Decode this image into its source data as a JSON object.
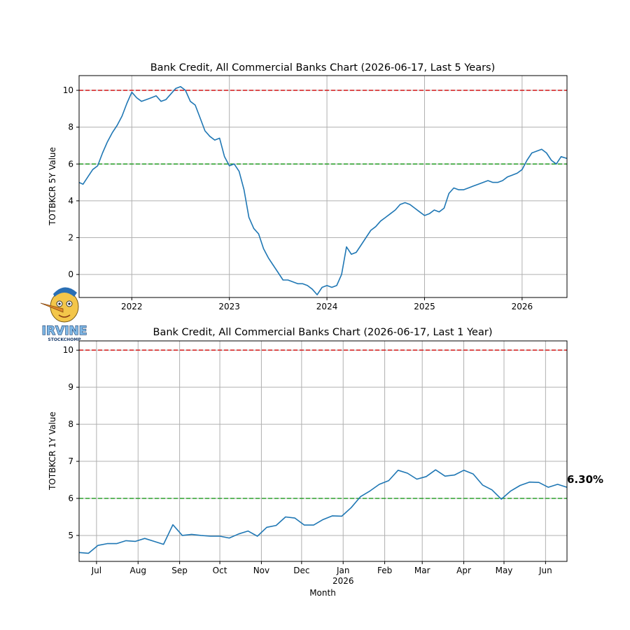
{
  "chart_data": [
    {
      "type": "line",
      "title": "Bank Credit, All Commercial Banks Chart (2026-06-17, Last 5 Years)",
      "xlabel": "",
      "ylabel": "TOTBKCR 5Y Value",
      "x_unit": "year",
      "xlim": [
        2021.46,
        2026.46
      ],
      "ylim": [
        -1.25,
        10.8
      ],
      "xticks": [
        2022,
        2023,
        2024,
        2025,
        2026
      ],
      "xtick_labels": [
        "2022",
        "2023",
        "2024",
        "2025",
        "2026"
      ],
      "yticks": [
        0,
        2,
        4,
        6,
        8,
        10
      ],
      "ytick_labels": [
        "0",
        "2",
        "4",
        "6",
        "8",
        "10"
      ],
      "grid": true,
      "reference_lines": [
        {
          "y": 10,
          "color": "#d62728",
          "style": "dashed"
        },
        {
          "y": 6,
          "color": "#2ca02c",
          "style": "dashed"
        }
      ],
      "series": [
        {
          "color": "#1f77b4",
          "x": [
            2021.46,
            2021.5,
            2021.55,
            2021.6,
            2021.65,
            2021.7,
            2021.75,
            2021.8,
            2021.85,
            2021.9,
            2021.95,
            2022.0,
            2022.05,
            2022.1,
            2022.15,
            2022.2,
            2022.25,
            2022.3,
            2022.35,
            2022.4,
            2022.45,
            2022.5,
            2022.55,
            2022.6,
            2022.65,
            2022.7,
            2022.75,
            2022.8,
            2022.85,
            2022.9,
            2022.95,
            2023.0,
            2023.05,
            2023.1,
            2023.15,
            2023.2,
            2023.25,
            2023.3,
            2023.35,
            2023.4,
            2023.45,
            2023.5,
            2023.55,
            2023.6,
            2023.65,
            2023.7,
            2023.75,
            2023.8,
            2023.85,
            2023.9,
            2023.95,
            2024.0,
            2024.05,
            2024.1,
            2024.15,
            2024.2,
            2024.25,
            2024.3,
            2024.35,
            2024.4,
            2024.45,
            2024.5,
            2024.55,
            2024.6,
            2024.65,
            2024.7,
            2024.75,
            2024.8,
            2024.85,
            2024.9,
            2024.95,
            2025.0,
            2025.05,
            2025.1,
            2025.15,
            2025.2,
            2025.25,
            2025.3,
            2025.35,
            2025.4,
            2025.45,
            2025.5,
            2025.55,
            2025.6,
            2025.65,
            2025.7,
            2025.75,
            2025.8,
            2025.85,
            2025.9,
            2025.95,
            2026.0,
            2026.05,
            2026.1,
            2026.15,
            2026.2,
            2026.25,
            2026.3,
            2026.35,
            2026.4,
            2026.46
          ],
          "values": [
            5.0,
            4.9,
            5.3,
            5.7,
            5.9,
            6.6,
            7.2,
            7.7,
            8.1,
            8.6,
            9.3,
            9.9,
            9.6,
            9.4,
            9.5,
            9.6,
            9.7,
            9.4,
            9.5,
            9.8,
            10.1,
            10.2,
            10.0,
            9.4,
            9.2,
            8.5,
            7.8,
            7.5,
            7.3,
            7.4,
            6.4,
            5.9,
            6.0,
            5.6,
            4.6,
            3.1,
            2.5,
            2.2,
            1.4,
            0.9,
            0.5,
            0.1,
            -0.3,
            -0.3,
            -0.4,
            -0.5,
            -0.5,
            -0.6,
            -0.8,
            -1.1,
            -0.7,
            -0.6,
            -0.7,
            -0.6,
            0.0,
            1.5,
            1.1,
            1.2,
            1.6,
            2.0,
            2.4,
            2.6,
            2.9,
            3.1,
            3.3,
            3.5,
            3.8,
            3.9,
            3.8,
            3.6,
            3.4,
            3.2,
            3.3,
            3.5,
            3.4,
            3.6,
            4.4,
            4.7,
            4.6,
            4.6,
            4.7,
            4.8,
            4.9,
            5.0,
            5.1,
            5.0,
            5.0,
            5.1,
            5.3,
            5.4,
            5.5,
            5.7,
            6.2,
            6.6,
            6.7,
            6.8,
            6.6,
            6.2,
            6.0,
            6.4,
            6.3
          ]
        }
      ]
    },
    {
      "type": "line",
      "title": "Bank Credit, All Commercial Banks Chart (2026-06-17, Last 1 Year)",
      "xlabel": "Month",
      "ylabel": "TOTBKCR 1Y Value",
      "x_unit": "days since 2025-06-01",
      "xlim": [
        17,
        381
      ],
      "ylim": [
        4.3,
        10.25
      ],
      "xticks": [
        30,
        61,
        92,
        122,
        153,
        183,
        214,
        245,
        273,
        304,
        334,
        365
      ],
      "xtick_labels": [
        "Jul",
        "Aug",
        "Sep",
        "Oct",
        "Nov",
        "Dec",
        "Jan",
        "Feb",
        "Mar",
        "Apr",
        "May",
        "Jun"
      ],
      "xtick_sublabel": {
        "Jan": "2026"
      },
      "yticks": [
        5,
        6,
        7,
        8,
        9,
        10
      ],
      "ytick_labels": [
        "5",
        "6",
        "7",
        "8",
        "9",
        "10"
      ],
      "grid": true,
      "reference_lines": [
        {
          "y": 10,
          "color": "#d62728",
          "style": "dashed"
        },
        {
          "y": 6,
          "color": "#2ca02c",
          "style": "dashed"
        }
      ],
      "last_value_label": "6.30%",
      "series": [
        {
          "color": "#1f77b4",
          "x": [
            17,
            24,
            31,
            38,
            45,
            52,
            59,
            66,
            73,
            80,
            87,
            94,
            101,
            108,
            115,
            122,
            129,
            136,
            143,
            150,
            157,
            164,
            171,
            178,
            185,
            192,
            199,
            206,
            213,
            220,
            227,
            234,
            241,
            248,
            255,
            262,
            269,
            276,
            283,
            290,
            297,
            304,
            311,
            318,
            325,
            332,
            339,
            346,
            353,
            360,
            367,
            374,
            381
          ],
          "values": [
            4.54,
            4.52,
            4.73,
            4.78,
            4.78,
            4.86,
            4.84,
            4.92,
            4.84,
            4.76,
            5.29,
            5.0,
            5.03,
            5.0,
            4.98,
            4.98,
            4.93,
            5.04,
            5.12,
            4.98,
            5.22,
            5.27,
            5.5,
            5.47,
            5.28,
            5.28,
            5.43,
            5.53,
            5.52,
            5.75,
            6.05,
            6.2,
            6.38,
            6.48,
            6.76,
            6.68,
            6.52,
            6.59,
            6.77,
            6.6,
            6.63,
            6.76,
            6.66,
            6.36,
            6.23,
            5.98,
            6.2,
            6.35,
            6.44,
            6.43,
            6.3,
            6.38,
            6.3
          ]
        }
      ]
    }
  ],
  "logo": {
    "text_main": "IRVINE",
    "text_sub": "STOCKCHOMP",
    "colors": {
      "face": "#f3c64a",
      "text": "#7fb8e6",
      "hat": "#2a6fb4",
      "nose": "#e08a2b"
    }
  }
}
